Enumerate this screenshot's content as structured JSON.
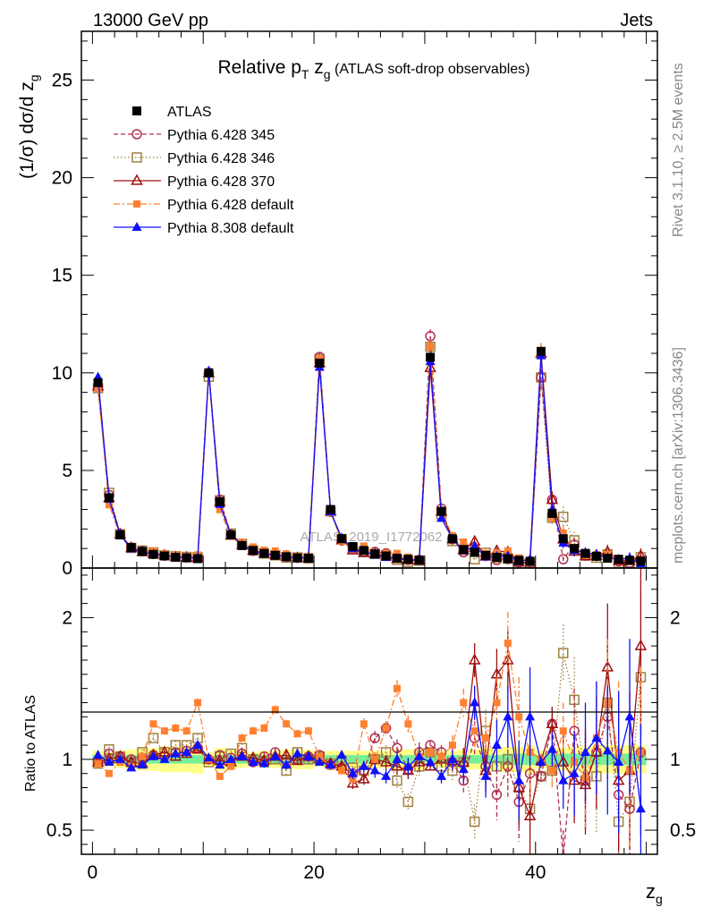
{
  "header": {
    "left": "13000 GeV pp",
    "right": "Jets"
  },
  "side_labels": {
    "rivet": "Rivet 3.1.10, ≥ 2.5M events",
    "mcplots": "mcplots.cern.ch [arXiv:1306.3436]"
  },
  "watermark": "ATLAS_2019_I1772062",
  "title": {
    "main": "Relative p",
    "sub_T": "T",
    "z": " z",
    "sub_g": "g",
    "rest": " (ATLAS soft-drop observables)"
  },
  "axes": {
    "ylabel_main": "(1/σ) dσ/d z",
    "ylabel_sub": "g",
    "ylabel_ratio": "Ratio to ATLAS",
    "xlabel": "z",
    "xlabel_sub": "g"
  },
  "colors": {
    "atlas": "#000000",
    "p345": "#b03050",
    "p346": "#a08040",
    "p370": "#a01010",
    "p6def": "#ff8030",
    "p8def": "#1010ff"
  },
  "chart_data": {
    "type": "scatter",
    "xlim": [
      -1,
      51
    ],
    "ylim": [
      0,
      27.5
    ],
    "ratio_ylim": [
      0.33,
      2.35
    ],
    "x_ticks": [
      0,
      20,
      40
    ],
    "y_ticks": [
      0,
      5,
      10,
      15,
      20,
      25
    ],
    "ratio_ticks": [
      0.5,
      1,
      2
    ],
    "x": [
      0.5,
      1.5,
      2.5,
      3.5,
      4.5,
      5.5,
      6.5,
      7.5,
      8.5,
      9.5,
      10.5,
      11.5,
      12.5,
      13.5,
      14.5,
      15.5,
      16.5,
      17.5,
      18.5,
      19.5,
      20.5,
      21.5,
      22.5,
      23.5,
      24.5,
      25.5,
      26.5,
      27.5,
      28.5,
      29.5,
      30.5,
      31.5,
      32.5,
      33.5,
      34.5,
      35.5,
      36.5,
      37.5,
      38.5,
      39.5,
      40.5,
      41.5,
      42.5,
      43.5,
      44.5,
      45.5,
      46.5,
      47.5,
      48.5,
      49.5
    ],
    "atlas": [
      9.5,
      3.6,
      1.7,
      1.05,
      0.85,
      0.7,
      0.62,
      0.55,
      0.52,
      0.48,
      10.0,
      3.4,
      1.7,
      1.15,
      0.9,
      0.75,
      0.65,
      0.58,
      0.52,
      0.5,
      10.5,
      3.0,
      1.5,
      1.1,
      0.9,
      0.72,
      0.62,
      0.5,
      0.45,
      0.4,
      10.8,
      2.9,
      1.5,
      0.95,
      0.8,
      0.65,
      0.55,
      0.48,
      0.4,
      0.35,
      11.1,
      2.8,
      1.5,
      1.0,
      0.75,
      0.6,
      0.5,
      0.45,
      0.4,
      0.35
    ],
    "series": [
      {
        "name": "ATLAS",
        "key": "atlas",
        "marker": "filled-square",
        "dash": ""
      },
      {
        "name": "Pythia 6.428 345",
        "key": "p345",
        "marker": "open-circle",
        "dash": "5,3"
      },
      {
        "name": "Pythia 6.428 346",
        "key": "p346",
        "marker": "open-square",
        "dash": "1.5,2.5"
      },
      {
        "name": "Pythia 6.428 370",
        "key": "p370",
        "marker": "open-triangle",
        "dash": ""
      },
      {
        "name": "Pythia 6.428 default",
        "key": "p6def",
        "marker": "filled-square-small",
        "dash": "7,3,2,3"
      },
      {
        "name": "Pythia 8.308 default",
        "key": "p8def",
        "marker": "filled-triangle",
        "dash": ""
      }
    ],
    "ratios": {
      "p345": [
        0.98,
        1.04,
        1.02,
        1.0,
        1.01,
        1.03,
        1.02,
        1.05,
        1.06,
        1.08,
        1.0,
        1.03,
        1.01,
        1.04,
        0.98,
        1.02,
        1.05,
        0.98,
        1.0,
        1.02,
        1.03,
        0.96,
        0.94,
        0.9,
        0.92,
        1.15,
        1.22,
        1.08,
        0.93,
        1.05,
        1.1,
        1.05,
        0.98,
        0.85,
        1.15,
        0.95,
        0.75,
        0.95,
        0.7,
        0.9,
        0.88,
        1.25,
        0.3,
        1.2,
        0.85,
        1.05,
        1.3,
        0.75,
        0.65,
        1.05
      ],
      "p346": [
        0.97,
        1.07,
        1.02,
        0.98,
        1.05,
        1.15,
        1.05,
        1.1,
        1.1,
        1.15,
        0.98,
        1.02,
        1.04,
        1.08,
        1.0,
        0.99,
        1.0,
        0.92,
        1.05,
        1.0,
        1.02,
        0.97,
        0.99,
        0.94,
        0.92,
        1.0,
        1.05,
        0.85,
        0.7,
        0.95,
        1.05,
        0.95,
        0.92,
        0.98,
        0.56,
        1.2,
        0.95,
        1.0,
        0.8,
        0.65,
        0.88,
        0.92,
        1.75,
        1.42,
        0.85,
        0.88,
        1.4,
        0.56,
        0.7,
        1.58
      ],
      "p370": [
        0.98,
        1.0,
        1.02,
        0.98,
        0.97,
        1.03,
        1.05,
        1.02,
        1.04,
        1.07,
        1.0,
        0.99,
        0.98,
        1.02,
        1.01,
        0.99,
        1.02,
        1.03,
        0.99,
        1.02,
        1.0,
        0.97,
        0.95,
        0.83,
        0.86,
        1.0,
        0.98,
        0.95,
        0.92,
        0.98,
        0.95,
        1.0,
        0.99,
        0.98,
        1.7,
        0.92,
        1.6,
        1.7,
        0.8,
        0.6,
        0.99,
        1.25,
        0.98,
        0.85,
        0.82,
        1.05,
        1.65,
        0.85,
        0.92,
        1.8
      ],
      "p6def": [
        0.97,
        0.9,
        0.98,
        0.95,
        1.02,
        1.25,
        1.2,
        1.22,
        1.2,
        1.4,
        1.0,
        0.88,
        0.95,
        1.15,
        1.2,
        1.22,
        1.35,
        1.25,
        1.18,
        1.2,
        1.02,
        0.95,
        0.92,
        0.86,
        1.25,
        1.0,
        1.22,
        1.5,
        1.25,
        1.02,
        1.05,
        1.02,
        1.1,
        1.4,
        1.2,
        1.15,
        1.4,
        1.82,
        1.3,
        1.05,
        1.0,
        0.92,
        1.2,
        0.98,
        0.87,
        1.15,
        1.4,
        1.05,
        0.92,
        1.05
      ],
      "p8def": [
        1.03,
        0.98,
        1.0,
        0.94,
        0.96,
        1.02,
        1.0,
        1.04,
        1.05,
        1.1,
        1.01,
        0.96,
        1.0,
        1.02,
        0.98,
        0.97,
        1.02,
        0.96,
        1.04,
        1.02,
        0.98,
        0.96,
        1.03,
        0.9,
        0.95,
        0.92,
        0.88,
        1.0,
        0.95,
        1.02,
        0.98,
        0.88,
        1.0,
        0.93,
        1.4,
        0.88,
        1.1,
        1.3,
        0.85,
        1.3,
        0.98,
        1.07,
        0.85,
        0.9,
        1.05,
        1.15,
        1.06,
        0.98,
        1.3,
        0.65
      ]
    },
    "ratio_errors": {
      "p345": [
        0.02,
        0.02,
        0.02,
        0.02,
        0.02,
        0.02,
        0.02,
        0.03,
        0.03,
        0.03,
        0.02,
        0.02,
        0.02,
        0.03,
        0.03,
        0.03,
        0.03,
        0.03,
        0.03,
        0.03,
        0.02,
        0.03,
        0.03,
        0.04,
        0.04,
        0.05,
        0.05,
        0.06,
        0.06,
        0.07,
        0.03,
        0.05,
        0.07,
        0.1,
        0.12,
        0.15,
        0.18,
        0.22,
        0.28,
        0.35,
        0.04,
        0.12,
        0.2,
        0.3,
        0.35,
        0.4,
        0.45,
        0.5,
        0.55,
        0.6
      ],
      "p346": [
        0.02,
        0.02,
        0.02,
        0.02,
        0.02,
        0.02,
        0.02,
        0.03,
        0.03,
        0.03,
        0.02,
        0.02,
        0.02,
        0.03,
        0.03,
        0.03,
        0.03,
        0.03,
        0.03,
        0.03,
        0.02,
        0.03,
        0.03,
        0.04,
        0.04,
        0.05,
        0.05,
        0.06,
        0.06,
        0.07,
        0.03,
        0.05,
        0.07,
        0.1,
        0.12,
        0.15,
        0.18,
        0.22,
        0.28,
        0.35,
        0.04,
        0.12,
        0.2,
        0.3,
        0.35,
        0.4,
        0.45,
        0.5,
        0.55,
        0.6
      ],
      "p370": [
        0.02,
        0.02,
        0.02,
        0.02,
        0.02,
        0.02,
        0.02,
        0.03,
        0.03,
        0.03,
        0.02,
        0.02,
        0.02,
        0.03,
        0.03,
        0.03,
        0.03,
        0.03,
        0.03,
        0.03,
        0.02,
        0.03,
        0.03,
        0.04,
        0.04,
        0.05,
        0.05,
        0.06,
        0.06,
        0.07,
        0.03,
        0.05,
        0.07,
        0.1,
        0.12,
        0.15,
        0.18,
        0.22,
        0.28,
        0.35,
        0.04,
        0.12,
        0.2,
        0.3,
        0.35,
        0.4,
        0.45,
        0.5,
        0.55,
        0.6
      ],
      "p6def": [
        0.02,
        0.02,
        0.02,
        0.02,
        0.02,
        0.02,
        0.02,
        0.03,
        0.03,
        0.03,
        0.02,
        0.02,
        0.02,
        0.03,
        0.03,
        0.03,
        0.03,
        0.03,
        0.03,
        0.03,
        0.02,
        0.03,
        0.03,
        0.04,
        0.04,
        0.05,
        0.05,
        0.06,
        0.06,
        0.07,
        0.03,
        0.05,
        0.07,
        0.1,
        0.12,
        0.15,
        0.18,
        0.22,
        0.28,
        0.35,
        0.04,
        0.12,
        0.2,
        0.3,
        0.35,
        0.4,
        0.45,
        0.5,
        0.55,
        0.6
      ],
      "p8def": [
        0.02,
        0.02,
        0.02,
        0.02,
        0.02,
        0.02,
        0.02,
        0.03,
        0.03,
        0.03,
        0.02,
        0.02,
        0.02,
        0.03,
        0.03,
        0.03,
        0.03,
        0.03,
        0.03,
        0.03,
        0.02,
        0.03,
        0.03,
        0.04,
        0.04,
        0.05,
        0.05,
        0.06,
        0.06,
        0.07,
        0.03,
        0.05,
        0.07,
        0.1,
        0.12,
        0.15,
        0.18,
        0.22,
        0.28,
        0.35,
        0.04,
        0.12,
        0.2,
        0.3,
        0.35,
        0.4,
        0.45,
        0.5,
        0.55,
        0.6
      ]
    },
    "band_inner": [
      0.03,
      0.03,
      0.03,
      0.03,
      0.03,
      0.03,
      0.03,
      0.03,
      0.03,
      0.03,
      0.02,
      0.03,
      0.03,
      0.03,
      0.03,
      0.03,
      0.03,
      0.03,
      0.03,
      0.03,
      0.02,
      0.03,
      0.03,
      0.03,
      0.03,
      0.03,
      0.03,
      0.03,
      0.03,
      0.03,
      0.02,
      0.03,
      0.03,
      0.03,
      0.03,
      0.03,
      0.03,
      0.04,
      0.04,
      0.04,
      0.03,
      0.04,
      0.04,
      0.04,
      0.04,
      0.04,
      0.04,
      0.04,
      0.04,
      0.04
    ],
    "band_outer": [
      0.06,
      0.05,
      0.06,
      0.07,
      0.08,
      0.08,
      0.09,
      0.09,
      0.09,
      0.1,
      0.05,
      0.08,
      0.07,
      0.06,
      0.05,
      0.06,
      0.06,
      0.07,
      0.07,
      0.07,
      0.05,
      0.06,
      0.06,
      0.06,
      0.06,
      0.06,
      0.06,
      0.07,
      0.07,
      0.08,
      0.05,
      0.06,
      0.06,
      0.07,
      0.07,
      0.08,
      0.08,
      0.09,
      0.09,
      0.1,
      0.06,
      0.08,
      0.08,
      0.09,
      0.09,
      0.1,
      0.1,
      0.1,
      0.1,
      0.1
    ]
  }
}
